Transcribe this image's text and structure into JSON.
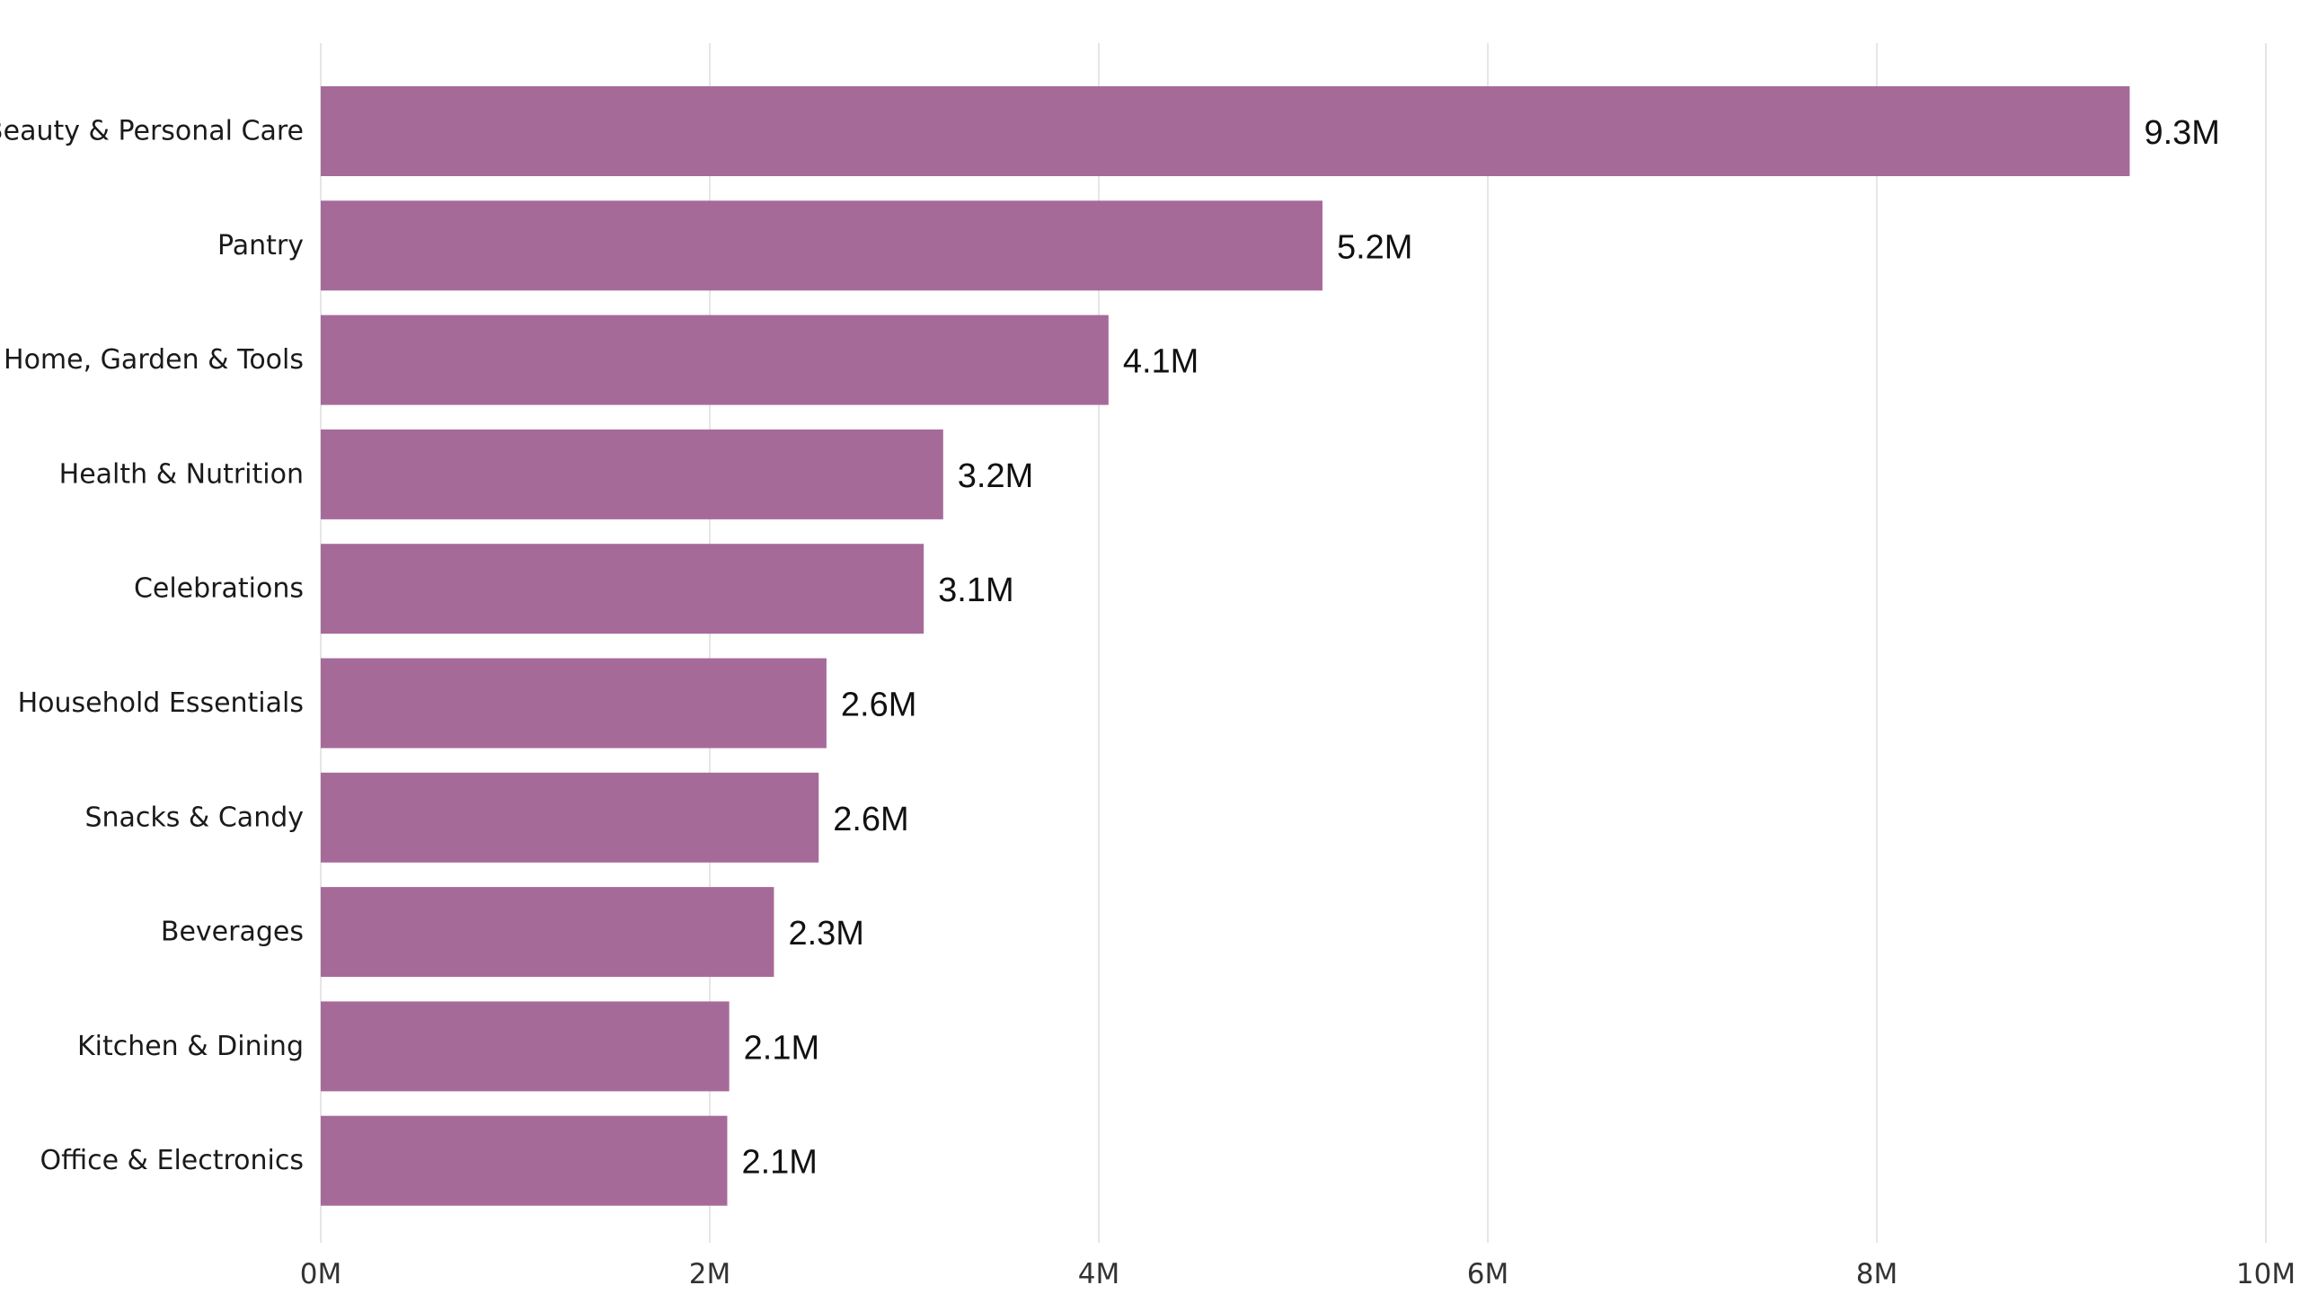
{
  "chart_data": {
    "type": "bar",
    "orientation": "horizontal",
    "categories": [
      "Beauty & Personal Care",
      "Pantry",
      "Home, Garden & Tools",
      "Health & Nutrition",
      "Celebrations",
      "Household Essentials",
      "Snacks & Candy",
      "Beverages",
      "Kitchen & Dining",
      "Office & Electronics"
    ],
    "values": [
      9.3,
      5.15,
      4.05,
      3.2,
      3.1,
      2.6,
      2.56,
      2.33,
      2.1,
      2.09
    ],
    "data_labels": [
      "9.3M",
      "5.2M",
      "4.1M",
      "3.2M",
      "3.1M",
      "2.6M",
      "2.6M",
      "2.3M",
      "2.1M",
      "2.1M"
    ],
    "units": "M",
    "xlim": [
      0,
      10
    ],
    "x_ticks": [
      0,
      2,
      4,
      6,
      8,
      10
    ],
    "x_tick_labels": [
      "0M",
      "2M",
      "4M",
      "6M",
      "8M",
      "10M"
    ],
    "title": "",
    "xlabel": "",
    "ylabel": "",
    "grid": "vertical",
    "legend": "none",
    "bar_color": "#a66a99"
  }
}
